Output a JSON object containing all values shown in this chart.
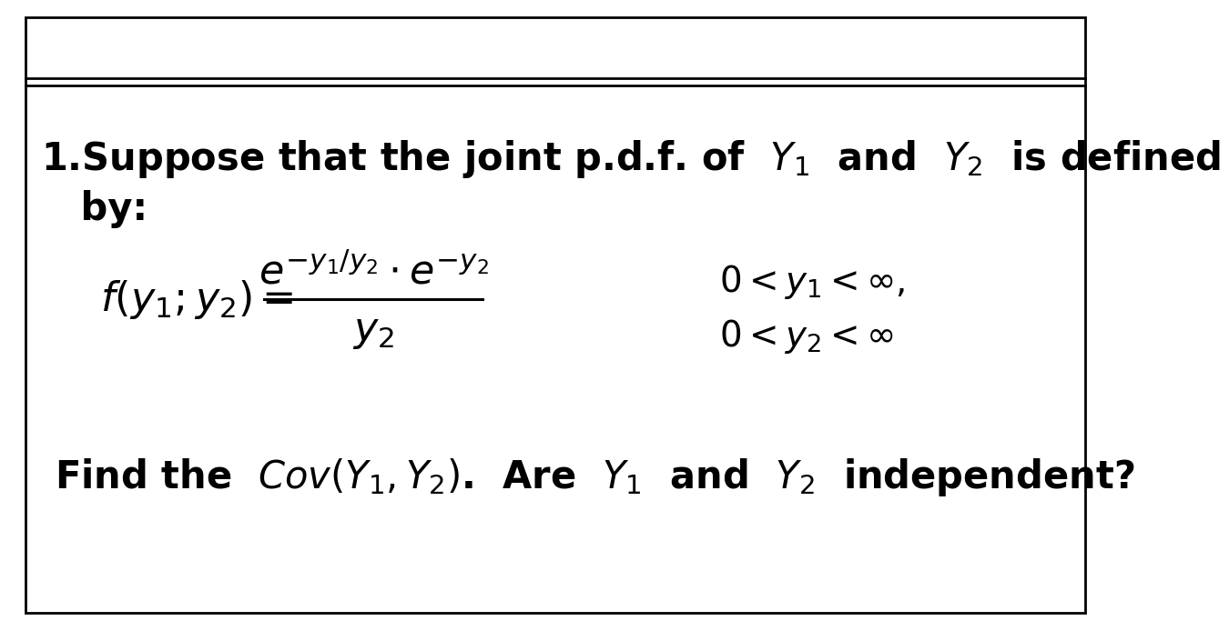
{
  "bg_color": "#ffffff",
  "border_color": "#000000",
  "line1": "1.Suppose that the joint p.d.f. of  $Y_1$  and  $Y_2$  is defined",
  "line2": "   by:",
  "formula_lhs": "$f(y_1;y_2) =$",
  "formula_numerator": "$e^{-y_1/y_2} \\cdot e^{-y_2}$",
  "formula_denominator": "$y_2$",
  "condition1": "$0 < y_1 < \\infty,$",
  "condition2": "$0 < y_2 < \\infty$",
  "find_text": "Find the  $\\mathit{Cov}(Y_1, Y_2)$.  Are  $Y_1$  and  $Y_2$  independent?",
  "font_size_main": 30,
  "font_size_formula": 32,
  "font_size_find": 30,
  "font_size_cond": 28
}
